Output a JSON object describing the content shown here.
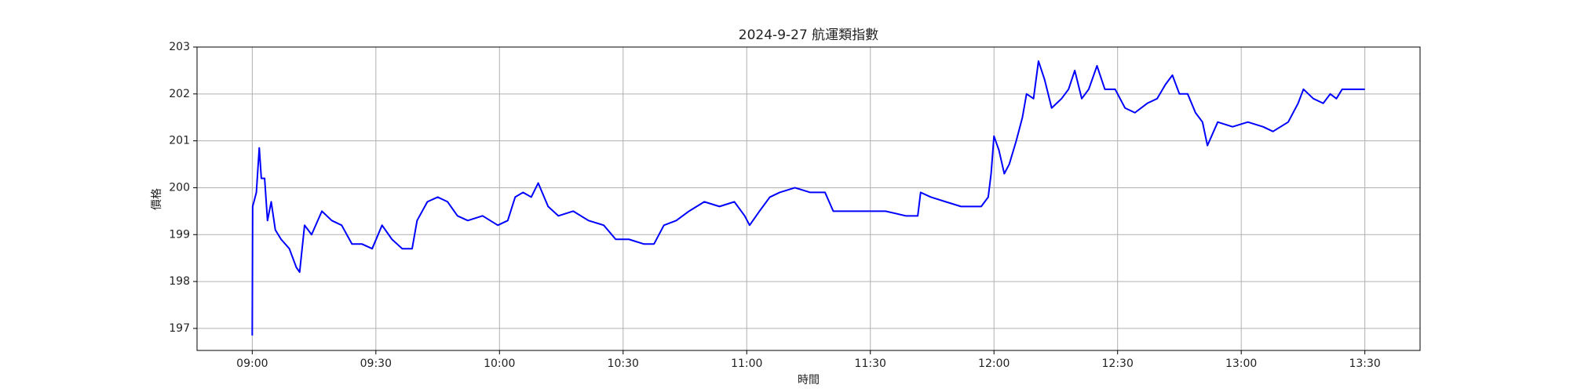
{
  "chart_data": {
    "type": "line",
    "title": "2024-9-27 航運類指數",
    "x_label": "時間",
    "y_label": "價格",
    "color": "#0000ff",
    "grid": true,
    "xlim": [
      526.6,
      823.4
    ],
    "ylim": [
      196.53,
      203.0
    ],
    "xticks": [
      {
        "value": 540,
        "label": "09:00"
      },
      {
        "value": 570,
        "label": "09:30"
      },
      {
        "value": 600,
        "label": "10:00"
      },
      {
        "value": 630,
        "label": "10:30"
      },
      {
        "value": 660,
        "label": "11:00"
      },
      {
        "value": 690,
        "label": "11:30"
      },
      {
        "value": 720,
        "label": "12:00"
      },
      {
        "value": 750,
        "label": "12:30"
      },
      {
        "value": 780,
        "label": "13:00"
      },
      {
        "value": 810,
        "label": "13:30"
      }
    ],
    "yticks": [
      197,
      198,
      199,
      200,
      201,
      202,
      203
    ],
    "x": [
      540,
      540.1,
      541,
      541.7,
      542.2,
      543,
      543.7,
      544.6,
      545.6,
      547,
      549,
      550.7,
      551.5,
      552.7,
      554.4,
      556.9,
      559.3,
      561.7,
      564.2,
      566.6,
      569.1,
      571.5,
      573.9,
      576.4,
      578.8,
      580,
      582.5,
      585,
      587.4,
      589.8,
      592.3,
      595.9,
      599.6,
      602,
      603.8,
      605.7,
      607.7,
      609.4,
      611.8,
      614.3,
      617.9,
      621.6,
      625.3,
      628.2,
      631.4,
      635,
      637.5,
      639.9,
      642.9,
      646,
      649.7,
      653.4,
      657,
      659.5,
      660.7,
      663.1,
      665.6,
      668,
      671.7,
      675.4,
      679,
      681,
      683.9,
      688.8,
      693.7,
      698.6,
      701.5,
      702.2,
      704.7,
      708.3,
      712,
      715.2,
      716.9,
      718.6,
      719.3,
      720,
      721.2,
      722.5,
      723.7,
      725.4,
      726.9,
      727.9,
      729.6,
      730.8,
      732.3,
      734,
      736.4,
      738.1,
      739.6,
      741.3,
      743,
      745,
      746.9,
      749.4,
      751.8,
      754.2,
      757.2,
      759.6,
      761.6,
      763.3,
      765,
      767,
      768.9,
      770.6,
      771.8,
      774.3,
      777.9,
      781.6,
      785.3,
      787.7,
      791.4,
      793.8,
      795.1,
      797.5,
      799.9,
      801.6,
      803.1,
      804.5,
      810
    ],
    "values": [
      196.85,
      199.6,
      199.9,
      200.85,
      200.2,
      200.2,
      199.3,
      199.7,
      199.1,
      198.9,
      198.7,
      198.3,
      198.2,
      199.2,
      199.0,
      199.5,
      199.3,
      199.2,
      198.8,
      198.8,
      198.7,
      199.2,
      198.9,
      198.7,
      198.7,
      199.3,
      199.7,
      199.8,
      199.7,
      199.4,
      199.3,
      199.4,
      199.2,
      199.3,
      199.8,
      199.9,
      199.8,
      200.1,
      199.6,
      199.4,
      199.5,
      199.3,
      199.2,
      198.9,
      198.9,
      198.8,
      198.8,
      199.2,
      199.3,
      199.5,
      199.7,
      199.6,
      199.7,
      199.4,
      199.2,
      199.5,
      199.8,
      199.9,
      200.0,
      199.9,
      199.9,
      199.5,
      199.5,
      199.5,
      199.5,
      199.4,
      199.4,
      199.9,
      199.8,
      199.7,
      199.6,
      199.6,
      199.6,
      199.8,
      200.3,
      201.1,
      200.8,
      200.3,
      200.5,
      201.0,
      201.5,
      202.0,
      201.9,
      202.7,
      202.3,
      201.7,
      201.9,
      202.1,
      202.5,
      201.9,
      202.1,
      202.6,
      202.1,
      202.1,
      201.7,
      201.6,
      201.8,
      201.9,
      202.2,
      202.4,
      202.0,
      202.0,
      201.6,
      201.4,
      200.9,
      201.4,
      201.3,
      201.4,
      201.3,
      201.2,
      201.4,
      201.8,
      202.1,
      201.9,
      201.8,
      202.0,
      201.9,
      202.1,
      202.1
    ]
  }
}
